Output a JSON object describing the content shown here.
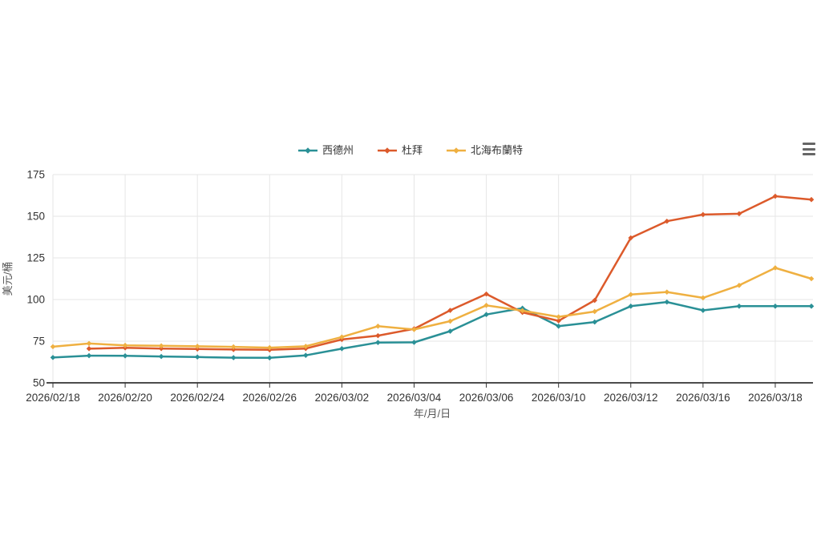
{
  "page": {
    "background": "#ffffff"
  },
  "chart": {
    "context_menu_icon": "hamburger-menu-icon",
    "context_menu_color": "#666666"
  },
  "chart_data": {
    "type": "line",
    "title": "",
    "xlabel": "年/月/日",
    "ylabel": "美元/桶",
    "ylim": [
      50,
      175
    ],
    "y_ticks": [
      50,
      75,
      100,
      125,
      150,
      175
    ],
    "grid": true,
    "legend_position": "top-center",
    "x_tick_label_every": 2,
    "visible_x_tick_labels": [
      "2026/02/18",
      "2026/02/20",
      "2026/02/24",
      "2026/02/26",
      "2026/03/02",
      "2026/03/04",
      "2026/03/06",
      "2026/03/10",
      "2026/03/12",
      "2026/03/16",
      "2026/03/18"
    ],
    "categories": [
      "2026/02/18",
      "2026/02/19",
      "2026/02/20",
      "2026/02/23",
      "2026/02/24",
      "2026/02/25",
      "2026/02/26",
      "2026/02/27",
      "2026/03/02",
      "2026/03/03",
      "2026/03/04",
      "2026/03/05",
      "2026/03/06",
      "2026/03/09",
      "2026/03/10",
      "2026/03/11",
      "2026/03/12",
      "2026/03/13",
      "2026/03/16",
      "2026/03/17",
      "2026/03/18",
      "2026/03/19"
    ],
    "series": [
      {
        "id": "wti",
        "name": "西德州",
        "color": "#2a9096",
        "values": [
          65.2,
          66.3,
          66.2,
          65.8,
          65.5,
          65.1,
          65.0,
          66.5,
          70.5,
          74.2,
          74.3,
          81.0,
          91.0,
          94.8,
          84.0,
          86.5,
          96.0,
          98.5,
          93.5,
          96.0,
          96.0,
          96.0
        ]
      },
      {
        "id": "dubai",
        "name": "杜拜",
        "color": "#dc5a2b",
        "values": [
          null,
          70.5,
          71.0,
          70.6,
          70.3,
          70.0,
          69.8,
          70.6,
          76.0,
          78.3,
          82.4,
          93.5,
          103.3,
          92.3,
          87.2,
          99.5,
          137.0,
          147.0,
          151.0,
          151.5,
          162.0,
          160.0
        ]
      },
      {
        "id": "brent",
        "name": "北海布蘭特",
        "color": "#efb041",
        "values": [
          71.7,
          73.6,
          72.5,
          72.2,
          71.9,
          71.6,
          71.1,
          71.9,
          77.5,
          84.0,
          82.0,
          87.0,
          96.5,
          93.3,
          89.6,
          92.8,
          103.0,
          104.5,
          101.0,
          108.5,
          119.0,
          112.5
        ]
      }
    ],
    "colors": {
      "grid": "#e6e6e6",
      "axis_line": "#333333",
      "tick_text": "#333333",
      "axis_title_text": "#555555"
    }
  }
}
